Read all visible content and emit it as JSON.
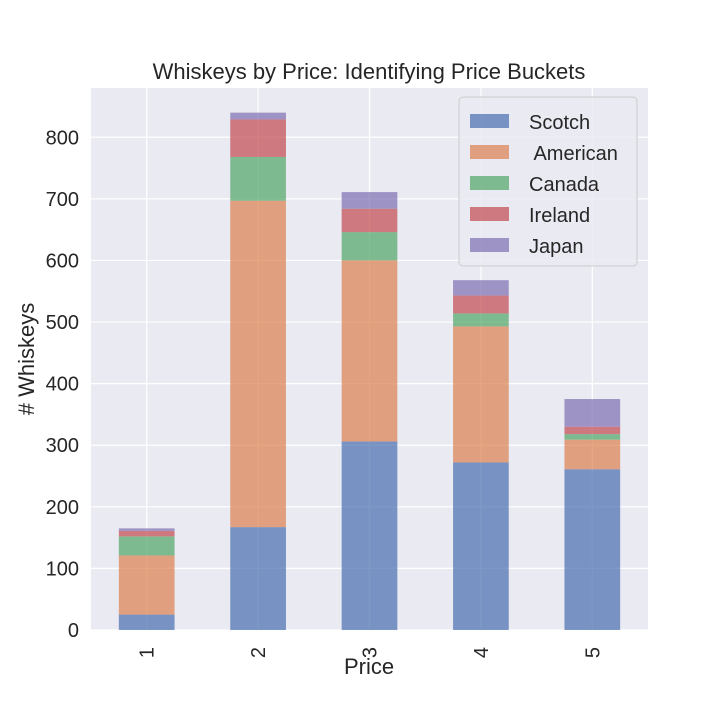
{
  "chart_data": {
    "type": "bar",
    "stacked": true,
    "title": "Whiskeys by Price: Identifying Price Buckets",
    "xlabel": "Price",
    "ylabel": "# Whiskeys",
    "categories": [
      "1",
      "2",
      "3",
      "4",
      "5"
    ],
    "ylim": [
      0,
      880
    ],
    "yticks": [
      0,
      100,
      200,
      300,
      400,
      500,
      600,
      700,
      800
    ],
    "grid": true,
    "legend_position": "top-right",
    "background": "#eaeaf2",
    "series": [
      {
        "name": "Scotch",
        "color": "#4c72b0",
        "values": [
          25,
          167,
          306,
          272,
          261
        ]
      },
      {
        "name": " American",
        "color": "#dd8452",
        "values": [
          96,
          530,
          294,
          221,
          48
        ]
      },
      {
        "name": "Canada",
        "color": "#55a868",
        "values": [
          31,
          71,
          46,
          21,
          9
        ]
      },
      {
        "name": "Ireland",
        "color": "#c44e52",
        "values": [
          9,
          61,
          38,
          29,
          12
        ]
      },
      {
        "name": "Japan",
        "color": "#8172b3",
        "values": [
          4,
          11,
          27,
          25,
          45
        ]
      }
    ]
  }
}
